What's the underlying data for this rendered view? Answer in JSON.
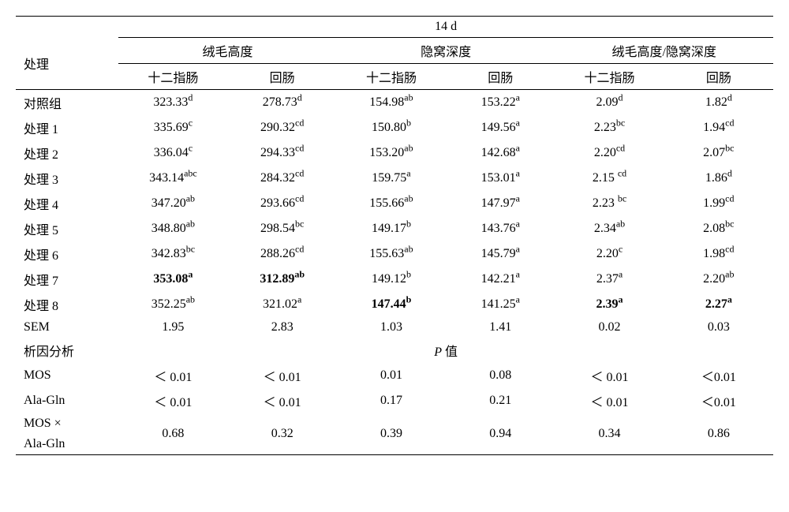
{
  "header": {
    "topspan": "14 d",
    "row_label": "处理",
    "groups": [
      "绒毛高度",
      "隐窝深度",
      "绒毛高度/隐窝深度"
    ],
    "subcols": [
      "十二指肠",
      "回肠"
    ]
  },
  "rows": [
    {
      "label": "对照组",
      "vals": [
        {
          "v": "323.33",
          "s": "d"
        },
        {
          "v": "278.73",
          "s": "d"
        },
        {
          "v": "154.98",
          "s": "ab"
        },
        {
          "v": "153.22",
          "s": "a"
        },
        {
          "v": "2.09",
          "s": "d"
        },
        {
          "v": "1.82",
          "s": "d"
        }
      ],
      "bold": [
        false,
        false,
        false,
        false,
        false,
        false
      ]
    },
    {
      "label": "处理 1",
      "vals": [
        {
          "v": "335.69",
          "s": "c"
        },
        {
          "v": "290.32",
          "s": "cd"
        },
        {
          "v": "150.80",
          "s": "b"
        },
        {
          "v": "149.56",
          "s": "a"
        },
        {
          "v": "2.23",
          "s": "bc"
        },
        {
          "v": "1.94",
          "s": "cd"
        }
      ],
      "bold": [
        false,
        false,
        false,
        false,
        false,
        false
      ]
    },
    {
      "label": "处理 2",
      "vals": [
        {
          "v": "336.04",
          "s": "c"
        },
        {
          "v": "294.33",
          "s": "cd"
        },
        {
          "v": "153.20",
          "s": "ab"
        },
        {
          "v": "142.68",
          "s": "a"
        },
        {
          "v": "2.20",
          "s": "cd"
        },
        {
          "v": "2.07",
          "s": "bc"
        }
      ],
      "bold": [
        false,
        false,
        false,
        false,
        false,
        false
      ]
    },
    {
      "label": "处理 3",
      "vals": [
        {
          "v": "343.14",
          "s": "abc"
        },
        {
          "v": "284.32",
          "s": "cd"
        },
        {
          "v": "159.75",
          "s": "a"
        },
        {
          "v": "153.01",
          "s": "a"
        },
        {
          "v": "2.15 ",
          "s": "cd"
        },
        {
          "v": "1.86",
          "s": "d"
        }
      ],
      "bold": [
        false,
        false,
        false,
        false,
        false,
        false
      ]
    },
    {
      "label": "处理 4",
      "vals": [
        {
          "v": "347.20",
          "s": "ab"
        },
        {
          "v": "293.66",
          "s": "cd"
        },
        {
          "v": "155.66",
          "s": "ab"
        },
        {
          "v": "147.97",
          "s": "a"
        },
        {
          "v": "2.23 ",
          "s": "bc"
        },
        {
          "v": "1.99",
          "s": "cd"
        }
      ],
      "bold": [
        false,
        false,
        false,
        false,
        false,
        false
      ]
    },
    {
      "label": "处理 5",
      "vals": [
        {
          "v": "348.80",
          "s": "ab"
        },
        {
          "v": "298.54",
          "s": "bc"
        },
        {
          "v": "149.17",
          "s": "b"
        },
        {
          "v": "143.76",
          "s": "a"
        },
        {
          "v": "2.34",
          "s": "ab"
        },
        {
          "v": "2.08",
          "s": "bc"
        }
      ],
      "bold": [
        false,
        false,
        false,
        false,
        false,
        false
      ]
    },
    {
      "label": "处理 6",
      "vals": [
        {
          "v": "342.83",
          "s": "bc"
        },
        {
          "v": "288.26",
          "s": "cd"
        },
        {
          "v": "155.63",
          "s": "ab"
        },
        {
          "v": "145.79",
          "s": "a"
        },
        {
          "v": "2.20",
          "s": "c"
        },
        {
          "v": "1.98",
          "s": "cd"
        }
      ],
      "bold": [
        false,
        false,
        false,
        false,
        false,
        false
      ]
    },
    {
      "label": "处理 7",
      "vals": [
        {
          "v": "353.08",
          "s": "a"
        },
        {
          "v": "312.89",
          "s": "ab"
        },
        {
          "v": "149.12",
          "s": "b"
        },
        {
          "v": "142.21",
          "s": "a"
        },
        {
          "v": "2.37",
          "s": "a"
        },
        {
          "v": "2.20",
          "s": "ab"
        }
      ],
      "bold": [
        true,
        true,
        false,
        false,
        false,
        false
      ]
    },
    {
      "label": "处理 8",
      "vals": [
        {
          "v": "352.25",
          "s": "ab"
        },
        {
          "v": "321.02",
          "s": "a"
        },
        {
          "v": "147.44",
          "s": "b"
        },
        {
          "v": "141.25",
          "s": "a"
        },
        {
          "v": "2.39",
          "s": "a"
        },
        {
          "v": "2.27",
          "s": "a"
        }
      ],
      "bold": [
        false,
        false,
        true,
        false,
        true,
        true
      ]
    },
    {
      "label": "SEM",
      "vals": [
        {
          "v": "1.95",
          "s": ""
        },
        {
          "v": "2.83",
          "s": ""
        },
        {
          "v": "1.03",
          "s": ""
        },
        {
          "v": "1.41",
          "s": ""
        },
        {
          "v": "0.02",
          "s": ""
        },
        {
          "v": "0.03",
          "s": ""
        }
      ],
      "bold": [
        false,
        false,
        false,
        false,
        false,
        false
      ]
    }
  ],
  "section": {
    "label": "析因分析",
    "center": "P 值"
  },
  "stats": [
    {
      "label": "MOS",
      "vals": [
        "＜ 0.01",
        "＜ 0.01",
        "0.01",
        "0.08",
        "＜ 0.01",
        "＜0.01"
      ]
    },
    {
      "label": "Ala-Gln",
      "vals": [
        "＜ 0.01",
        "＜ 0.01",
        "0.17",
        "0.21",
        "＜ 0.01",
        "＜0.01"
      ]
    }
  ],
  "final": {
    "label1": "MOS ×",
    "label2": "Ala-Gln",
    "vals": [
      "0.68",
      "0.32",
      "0.39",
      "0.94",
      "0.34",
      "0.86"
    ]
  },
  "style": {
    "col_widths": [
      "130px",
      "138px",
      "138px",
      "138px",
      "138px",
      "138px",
      "138px"
    ],
    "font_size": "16px"
  }
}
